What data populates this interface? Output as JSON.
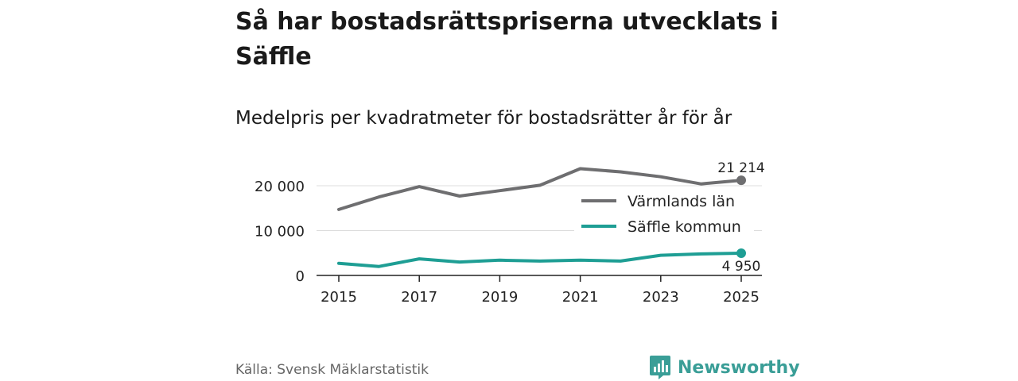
{
  "title": "Så har bostadsrättspriserna utvecklats i Säffle",
  "subtitle": "Medelpris per kvadratmeter för bostadsrätter år för år",
  "source": "Källa: Svensk Mäklarstatistik",
  "brand": "Newsworthy",
  "colors": {
    "varmland": "#6e6e70",
    "saffle": "#1e9e94",
    "axis": "#222222",
    "grid": "#dcdcdc",
    "brand": "#3a9e97"
  },
  "chart_data": {
    "type": "line",
    "title": "Medelpris per kvadratmeter för bostadsrätter år för år",
    "xlabel": "",
    "ylabel": "",
    "x": [
      2015,
      2016,
      2017,
      2018,
      2019,
      2020,
      2021,
      2022,
      2023,
      2024,
      2025
    ],
    "xlim": [
      2015,
      2025
    ],
    "ylim": [
      0,
      21500
    ],
    "x_ticks": [
      2015,
      2017,
      2019,
      2021,
      2023,
      2025
    ],
    "x_tick_labels": [
      "2015",
      "2017",
      "2019",
      "2021",
      "2023",
      "2025"
    ],
    "y_ticks": [
      0,
      10000,
      20000
    ],
    "y_tick_labels": [
      "0",
      "10 000",
      "20 000"
    ],
    "grid": true,
    "legend_position": "right",
    "series": [
      {
        "name": "Värmlands län",
        "values": [
          14700,
          17500,
          19800,
          17700,
          18900,
          20100,
          23800,
          23100,
          22000,
          20400,
          21214
        ],
        "end_label": "21 214"
      },
      {
        "name": "Säffle kommun",
        "values": [
          2700,
          2000,
          3700,
          3000,
          3400,
          3200,
          3400,
          3200,
          4500,
          4800,
          4950
        ],
        "end_label": "4 950"
      }
    ]
  }
}
